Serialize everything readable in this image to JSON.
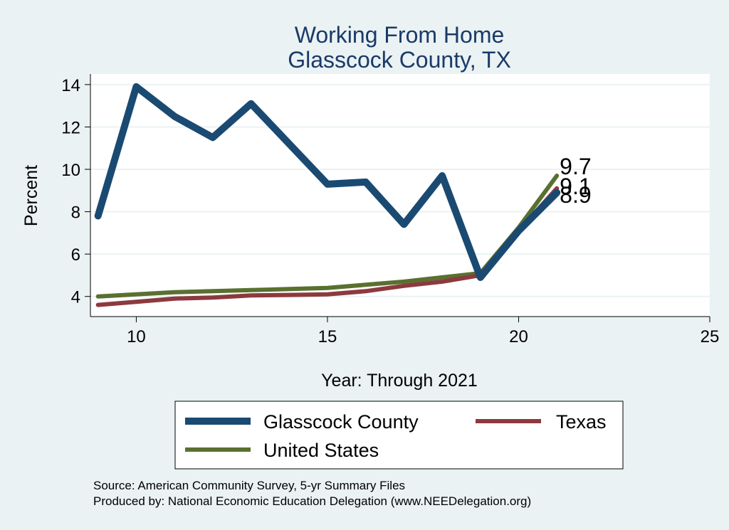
{
  "chart_data": {
    "type": "line",
    "title": [
      "Working From Home",
      "Glasscock County, TX"
    ],
    "xlabel": "Year: Through 2021",
    "ylabel": "Percent",
    "xlim": [
      8.8,
      25
    ],
    "ylim": [
      3.05,
      14.5
    ],
    "xticks": [
      10,
      15,
      20,
      25
    ],
    "yticks": [
      4,
      6,
      8,
      10,
      12,
      14
    ],
    "grid": "horizontal",
    "legend_position": "bottom",
    "series": [
      {
        "name": "Glasscock County",
        "color": "#1a4a72",
        "width": 10,
        "x": [
          9,
          10,
          11,
          12,
          13,
          14,
          15,
          16,
          17,
          18,
          19,
          20,
          21
        ],
        "y": [
          7.8,
          13.9,
          12.5,
          11.5,
          13.1,
          11.2,
          9.3,
          9.4,
          7.4,
          9.7,
          4.9,
          7.1,
          8.9
        ]
      },
      {
        "name": "Texas",
        "color": "#8c3a3e",
        "width": 6,
        "x": [
          9,
          10,
          11,
          12,
          13,
          14,
          15,
          16,
          17,
          18,
          19,
          20,
          21
        ],
        "y": [
          3.6,
          3.75,
          3.9,
          3.95,
          4.05,
          4.07,
          4.1,
          4.25,
          4.5,
          4.7,
          5.0,
          7.1,
          9.1
        ]
      },
      {
        "name": "United States",
        "color": "#5a7030",
        "width": 6,
        "x": [
          9,
          10,
          11,
          12,
          13,
          14,
          15,
          16,
          17,
          18,
          19,
          20,
          21
        ],
        "y": [
          4.0,
          4.1,
          4.2,
          4.25,
          4.3,
          4.35,
          4.4,
          4.55,
          4.7,
          4.9,
          5.1,
          7.25,
          9.7
        ]
      }
    ],
    "end_labels": [
      {
        "text": "9.7",
        "series": "United States"
      },
      {
        "text": "9.1",
        "series": "Texas"
      },
      {
        "text": "8.9",
        "series": "Glasscock County"
      }
    ],
    "source_lines": [
      "Source: American Community Survey, 5-yr Summary Files",
      "Produced by: National Economic Education Delegation (www.NEEDelegation.org)"
    ]
  }
}
